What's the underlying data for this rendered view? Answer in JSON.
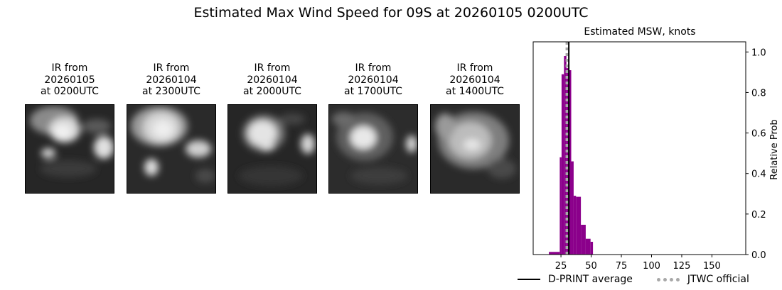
{
  "title": "Estimated Max Wind Speed for 09S at 20260105 0200UTC",
  "ir_panels": [
    {
      "line1": "IR from",
      "line2": "20260105",
      "line3": "at 0200UTC"
    },
    {
      "line1": "IR from",
      "line2": "20260104",
      "line3": "at 2300UTC"
    },
    {
      "line1": "IR from",
      "line2": "20260104",
      "line3": "at 2000UTC"
    },
    {
      "line1": "IR from",
      "line2": "20260104",
      "line3": "at 1700UTC"
    },
    {
      "line1": "IR from",
      "line2": "20260104",
      "line3": "at 1400UTC"
    }
  ],
  "chart_data": {
    "type": "bar",
    "title": "Estimated MSW, knots",
    "xlabel": "",
    "ylabel": "Relative Prob",
    "xlim": [
      2,
      178
    ],
    "ylim": [
      0,
      1.05
    ],
    "xticks": [
      25,
      50,
      75,
      100,
      125,
      150
    ],
    "yticks": [
      0.0,
      0.2,
      0.4,
      0.6,
      0.8,
      1.0
    ],
    "y_axis_side": "right",
    "bar_color": "#8b008b",
    "bins": [
      {
        "x0": 15,
        "x1": 24,
        "value": 0.013
      },
      {
        "x0": 24,
        "x1": 25.5,
        "value": 0.48
      },
      {
        "x0": 25.5,
        "x1": 27.5,
        "value": 0.89
      },
      {
        "x0": 27.5,
        "x1": 29.5,
        "value": 0.98
      },
      {
        "x0": 29.5,
        "x1": 31.5,
        "value": 0.92
      },
      {
        "x0": 31.5,
        "x1": 33.5,
        "value": 0.91
      },
      {
        "x0": 33.5,
        "x1": 35.5,
        "value": 0.46
      },
      {
        "x0": 35.5,
        "x1": 37.5,
        "value": 0.29
      },
      {
        "x0": 37.5,
        "x1": 41.5,
        "value": 0.285
      },
      {
        "x0": 41.5,
        "x1": 45.5,
        "value": 0.147
      },
      {
        "x0": 45.5,
        "x1": 49.5,
        "value": 0.078
      },
      {
        "x0": 49.5,
        "x1": 51.5,
        "value": 0.063
      }
    ],
    "dprint_average": 31.5,
    "jtwc_official": 30,
    "legend": {
      "placement": "bottom-right",
      "dprint_label": "D-PRINT average",
      "jtwc_label": "JTWC official"
    }
  }
}
